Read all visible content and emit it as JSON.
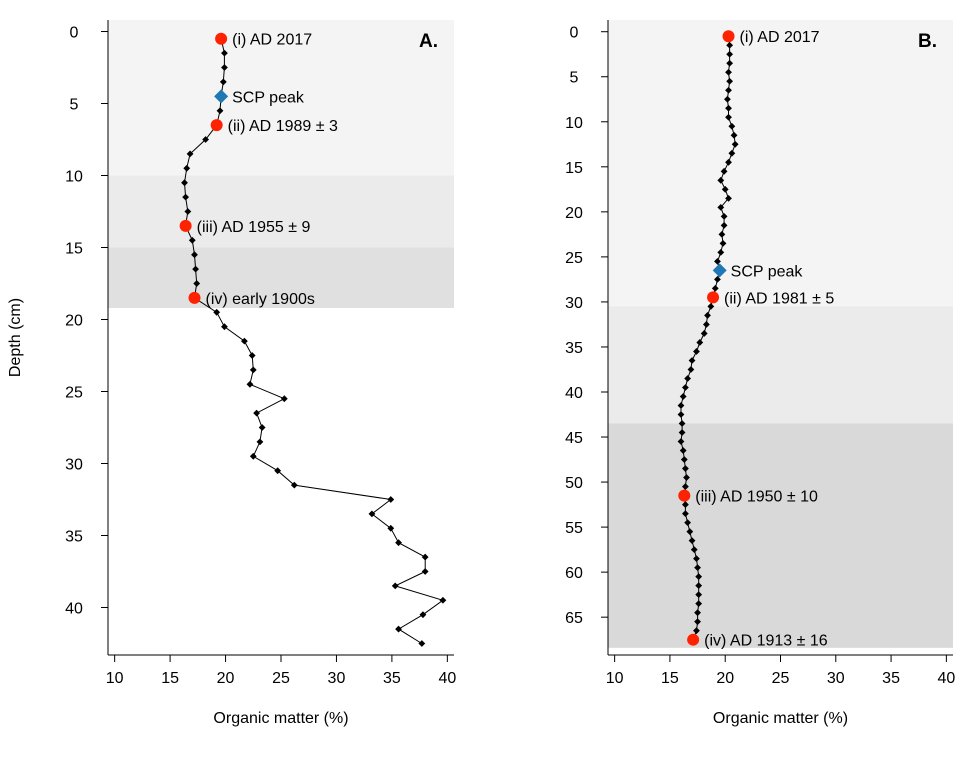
{
  "chart_data": [
    {
      "type": "line",
      "panel_label": "A.",
      "xlabel": "Organic matter (%)",
      "ylabel": "Depth (cm)",
      "xlim": [
        9.4,
        40.6
      ],
      "ylim": [
        43.3,
        -0.8
      ],
      "xticks": [
        10,
        15,
        20,
        25,
        30,
        35,
        40
      ],
      "yticks": [
        0,
        5,
        10,
        15,
        20,
        25,
        30,
        35,
        40
      ],
      "grid": false,
      "bands": [
        {
          "from": -0.8,
          "to": 10,
          "color": "#f4f4f4"
        },
        {
          "from": 10,
          "to": 15,
          "color": "#ebebeb"
        },
        {
          "from": 15,
          "to": 19.2,
          "color": "#e0e0e0"
        }
      ],
      "series": [
        {
          "style": "line-diamond",
          "color": "#000000",
          "points": [
            {
              "x": 19.6,
              "y": 0.5
            },
            {
              "x": 19.9,
              "y": 1.5
            },
            {
              "x": 19.9,
              "y": 2.5
            },
            {
              "x": 19.8,
              "y": 3.5
            },
            {
              "x": 19.6,
              "y": 4.5
            },
            {
              "x": 19.5,
              "y": 5.5
            },
            {
              "x": 19.2,
              "y": 6.5
            },
            {
              "x": 18.2,
              "y": 7.5
            },
            {
              "x": 16.8,
              "y": 8.5
            },
            {
              "x": 16.5,
              "y": 9.5
            },
            {
              "x": 16.3,
              "y": 10.5
            },
            {
              "x": 16.4,
              "y": 11.5
            },
            {
              "x": 16.6,
              "y": 12.5
            },
            {
              "x": 16.4,
              "y": 13.5
            },
            {
              "x": 17.0,
              "y": 14.5
            },
            {
              "x": 17.2,
              "y": 15.5
            },
            {
              "x": 17.3,
              "y": 16.5
            },
            {
              "x": 17.4,
              "y": 17.5
            },
            {
              "x": 17.2,
              "y": 18.5
            },
            {
              "x": 19.2,
              "y": 19.5
            },
            {
              "x": 19.9,
              "y": 20.5
            },
            {
              "x": 21.7,
              "y": 21.5
            },
            {
              "x": 22.4,
              "y": 22.5
            },
            {
              "x": 22.5,
              "y": 23.5
            },
            {
              "x": 22.2,
              "y": 24.5
            },
            {
              "x": 25.3,
              "y": 25.5
            },
            {
              "x": 22.8,
              "y": 26.5
            },
            {
              "x": 23.3,
              "y": 27.5
            },
            {
              "x": 23.1,
              "y": 28.5
            },
            {
              "x": 22.5,
              "y": 29.5
            },
            {
              "x": 24.7,
              "y": 30.5
            },
            {
              "x": 26.2,
              "y": 31.5
            },
            {
              "x": 34.9,
              "y": 32.5
            },
            {
              "x": 33.2,
              "y": 33.5
            },
            {
              "x": 34.9,
              "y": 34.5
            },
            {
              "x": 35.6,
              "y": 35.5
            },
            {
              "x": 38.0,
              "y": 36.5
            },
            {
              "x": 38.0,
              "y": 37.5
            },
            {
              "x": 35.3,
              "y": 38.5
            },
            {
              "x": 39.6,
              "y": 39.5
            },
            {
              "x": 37.8,
              "y": 40.5
            },
            {
              "x": 35.6,
              "y": 41.5
            },
            {
              "x": 37.7,
              "y": 42.5
            }
          ]
        }
      ],
      "markers": [
        {
          "label": "(i) AD 2017",
          "x": 19.6,
          "y": 0.5,
          "shape": "circle",
          "color": "#ff2200",
          "anchor": "right"
        },
        {
          "label": "SCP peak",
          "x": 19.6,
          "y": 4.5,
          "shape": "diamond",
          "color": "#1f78b4",
          "anchor": "right"
        },
        {
          "label": "(ii) AD 1989 ± 3",
          "x": 19.2,
          "y": 6.5,
          "shape": "circle",
          "color": "#ff2200",
          "anchor": "right"
        },
        {
          "label": "(iii) AD 1955 ± 9",
          "x": 16.4,
          "y": 13.5,
          "shape": "circle",
          "color": "#ff2200",
          "anchor": "right"
        },
        {
          "label": "(iv) early 1900s",
          "x": 17.2,
          "y": 18.5,
          "shape": "circle",
          "color": "#ff2200",
          "anchor": "right"
        }
      ]
    },
    {
      "type": "line",
      "panel_label": "B.",
      "xlabel": "Organic matter (%)",
      "ylabel": "",
      "xlim": [
        9.4,
        40.6
      ],
      "ylim": [
        69.2,
        -1.3
      ],
      "xticks": [
        10,
        15,
        20,
        25,
        30,
        35,
        40
      ],
      "yticks": [
        0,
        5,
        10,
        15,
        20,
        25,
        30,
        35,
        40,
        45,
        50,
        55,
        60,
        65
      ],
      "grid": false,
      "bands": [
        {
          "from": -1.3,
          "to": 30.5,
          "color": "#f4f4f4"
        },
        {
          "from": 30.5,
          "to": 43.5,
          "color": "#ebebeb"
        },
        {
          "from": 43.5,
          "to": 68.4,
          "color": "#d9d9d9"
        }
      ],
      "series": [
        {
          "style": "line-diamond",
          "color": "#000000",
          "points": [
            {
              "x": 20.3,
              "y": 0.5
            },
            {
              "x": 20.4,
              "y": 1.5
            },
            {
              "x": 20.4,
              "y": 2.5
            },
            {
              "x": 20.4,
              "y": 3.5
            },
            {
              "x": 20.3,
              "y": 4.5
            },
            {
              "x": 20.4,
              "y": 5.5
            },
            {
              "x": 20.3,
              "y": 6.5
            },
            {
              "x": 20.2,
              "y": 7.5
            },
            {
              "x": 20.3,
              "y": 8.5
            },
            {
              "x": 20.3,
              "y": 9.5
            },
            {
              "x": 20.6,
              "y": 10.5
            },
            {
              "x": 20.8,
              "y": 11.5
            },
            {
              "x": 20.9,
              "y": 12.5
            },
            {
              "x": 20.6,
              "y": 13.5
            },
            {
              "x": 20.3,
              "y": 14.5
            },
            {
              "x": 19.9,
              "y": 15.5
            },
            {
              "x": 19.6,
              "y": 16.5
            },
            {
              "x": 20.0,
              "y": 17.5
            },
            {
              "x": 20.3,
              "y": 18.5
            },
            {
              "x": 19.6,
              "y": 19.5
            },
            {
              "x": 19.9,
              "y": 20.5
            },
            {
              "x": 19.9,
              "y": 21.5
            },
            {
              "x": 19.7,
              "y": 22.5
            },
            {
              "x": 19.8,
              "y": 23.5
            },
            {
              "x": 19.6,
              "y": 24.5
            },
            {
              "x": 19.3,
              "y": 25.5
            },
            {
              "x": 19.5,
              "y": 26.5
            },
            {
              "x": 19.3,
              "y": 27.5
            },
            {
              "x": 19.1,
              "y": 28.5
            },
            {
              "x": 18.9,
              "y": 29.5
            },
            {
              "x": 18.7,
              "y": 30.5
            },
            {
              "x": 18.4,
              "y": 31.5
            },
            {
              "x": 18.3,
              "y": 32.5
            },
            {
              "x": 18.1,
              "y": 33.5
            },
            {
              "x": 17.7,
              "y": 34.5
            },
            {
              "x": 17.4,
              "y": 35.5
            },
            {
              "x": 17.0,
              "y": 36.5
            },
            {
              "x": 16.9,
              "y": 37.5
            },
            {
              "x": 16.6,
              "y": 38.5
            },
            {
              "x": 16.4,
              "y": 39.5
            },
            {
              "x": 16.2,
              "y": 40.5
            },
            {
              "x": 16.0,
              "y": 41.5
            },
            {
              "x": 16.0,
              "y": 42.5
            },
            {
              "x": 16.1,
              "y": 43.5
            },
            {
              "x": 16.1,
              "y": 44.5
            },
            {
              "x": 16.0,
              "y": 45.5
            },
            {
              "x": 16.2,
              "y": 46.5
            },
            {
              "x": 16.3,
              "y": 47.5
            },
            {
              "x": 16.4,
              "y": 48.5
            },
            {
              "x": 16.5,
              "y": 49.5
            },
            {
              "x": 16.4,
              "y": 50.5
            },
            {
              "x": 16.3,
              "y": 51.5
            },
            {
              "x": 16.4,
              "y": 52.5
            },
            {
              "x": 16.4,
              "y": 53.5
            },
            {
              "x": 16.6,
              "y": 54.5
            },
            {
              "x": 16.8,
              "y": 55.5
            },
            {
              "x": 17.0,
              "y": 56.5
            },
            {
              "x": 17.2,
              "y": 57.5
            },
            {
              "x": 17.4,
              "y": 58.5
            },
            {
              "x": 17.5,
              "y": 59.5
            },
            {
              "x": 17.6,
              "y": 60.5
            },
            {
              "x": 17.6,
              "y": 61.5
            },
            {
              "x": 17.6,
              "y": 62.5
            },
            {
              "x": 17.6,
              "y": 63.5
            },
            {
              "x": 17.5,
              "y": 64.5
            },
            {
              "x": 17.5,
              "y": 65.5
            },
            {
              "x": 17.4,
              "y": 66.5
            },
            {
              "x": 17.1,
              "y": 67.5
            }
          ]
        }
      ],
      "markers": [
        {
          "label": "(i) AD 2017",
          "x": 20.3,
          "y": 0.5,
          "shape": "circle",
          "color": "#ff2200",
          "anchor": "right"
        },
        {
          "label": "SCP peak",
          "x": 19.5,
          "y": 26.5,
          "shape": "diamond",
          "color": "#1f78b4",
          "anchor": "right"
        },
        {
          "label": "(ii) AD 1981 ± 5",
          "x": 18.9,
          "y": 29.5,
          "shape": "circle",
          "color": "#ff2200",
          "anchor": "right"
        },
        {
          "label": "(iii) AD 1950 ± 10",
          "x": 16.3,
          "y": 51.5,
          "shape": "circle",
          "color": "#ff2200",
          "anchor": "right"
        },
        {
          "label": "(iv) AD 1913 ± 16",
          "x": 17.1,
          "y": 67.5,
          "shape": "circle",
          "color": "#ff2200",
          "anchor": "right"
        }
      ]
    }
  ]
}
